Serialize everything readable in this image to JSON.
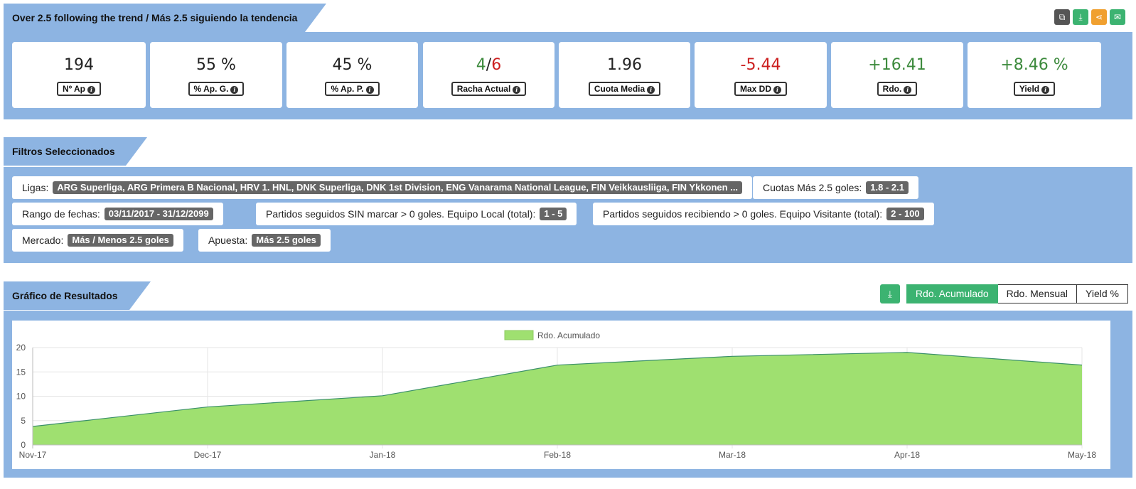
{
  "header": {
    "title": "Over 2.5 following the trend / Más 2.5 siguiendo la tendencia",
    "actions": [
      {
        "name": "copy-icon",
        "color": "#555555"
      },
      {
        "name": "download-icon",
        "color": "#3cb371"
      },
      {
        "name": "share-icon",
        "color": "#f0a030"
      },
      {
        "name": "mail-icon",
        "color": "#3cb371"
      }
    ]
  },
  "stats": [
    {
      "value": "194",
      "label": "Nº Ap"
    },
    {
      "value": "55 %",
      "label": "% Ap. G."
    },
    {
      "value": "45 %",
      "label": "% Ap. P."
    },
    {
      "value_won": "4",
      "value_sep": "/",
      "value_lost": "6",
      "label": "Racha Actual"
    },
    {
      "value": "1.96",
      "label": "Cuota Media"
    },
    {
      "value": "-5.44",
      "label": "Max DD"
    },
    {
      "value": "+16.41",
      "label": "Rdo."
    },
    {
      "value": "+8.46 %",
      "label": "Yield"
    }
  ],
  "filters": {
    "title": "Filtros Seleccionados",
    "items": [
      {
        "label": "Ligas:",
        "value": "ARG Superliga, ARG Primera B Nacional, HRV 1. HNL, DNK Superliga, DNK 1st Division, ENG Vanarama National League, FIN Veikkausliiga, FIN Ykkonen ..."
      },
      {
        "label": "Cuotas Más 2.5 goles:",
        "value": "1.8 - 2.1"
      },
      {
        "label": "Rango de fechas:",
        "value": "03/11/2017 - 31/12/2099"
      },
      {
        "label": "Partidos seguidos SIN marcar > 0 goles. Equipo Local (total):",
        "value": "1 - 5"
      },
      {
        "label": "Partidos seguidos recibiendo > 0 goles. Equipo Visitante (total):",
        "value": "2 - 100"
      },
      {
        "label": "Mercado:",
        "value": "Más / Menos 2.5 goles"
      },
      {
        "label": "Apuesta:",
        "value": "Más 2.5 goles"
      }
    ]
  },
  "results": {
    "title": "Gráfico de Resultados",
    "buttons": {
      "accumulated": "Rdo. Acumulado",
      "monthly": "Rdo. Mensual",
      "yield": "Yield %"
    },
    "active": "accumulated"
  },
  "colors": {
    "panel": "#8db4e2",
    "fill": "#9fe070",
    "line": "#3a8f6a",
    "accent": "#3cb371"
  },
  "chart_data": {
    "type": "area",
    "legend": "Rdo. Acumulado",
    "legend_position": "top-center",
    "x": [
      "Nov-17",
      "Dec-17",
      "Jan-18",
      "Feb-18",
      "Mar-18",
      "Apr-18",
      "May-18"
    ],
    "series": [
      {
        "name": "Rdo. Acumulado",
        "values": [
          3.8,
          7.8,
          10.1,
          16.4,
          18.2,
          19.0,
          16.4
        ]
      }
    ],
    "yticks": [
      0,
      5,
      10,
      15,
      20
    ],
    "ylim": [
      0,
      20
    ],
    "grid": true
  }
}
